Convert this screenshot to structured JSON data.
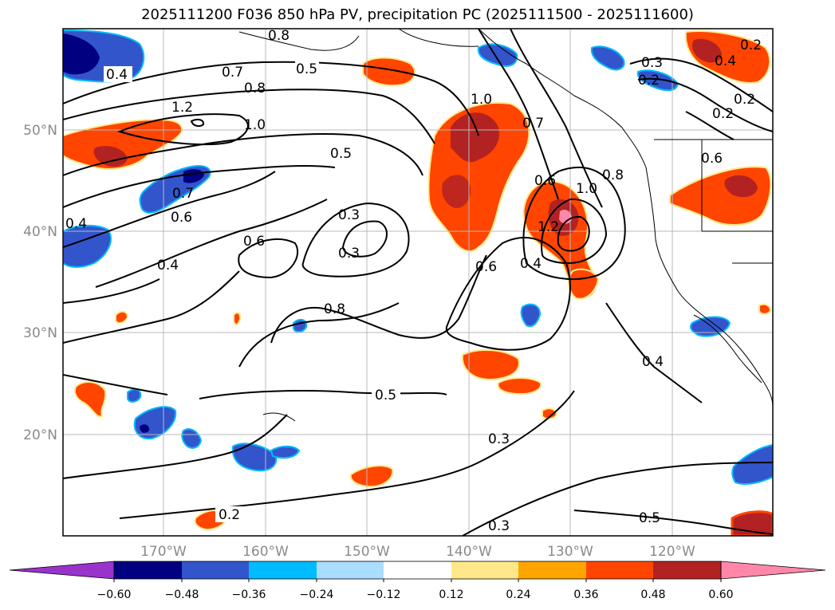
{
  "title": "2025111200 F036 850 hPa PV, precipitation PC (2025111500 - 2025111600)",
  "map": {
    "lat_ticks": [
      "50°N",
      "40°N",
      "30°N",
      "20°N"
    ],
    "lon_ticks": [
      "170°W",
      "160°W",
      "150°W",
      "140°W",
      "130°W",
      "120°W"
    ],
    "contour_labels": [
      "0.4",
      "0.5",
      "0.8",
      "1.2",
      "1.0",
      "0.5",
      "0.4",
      "0.6",
      "0.7",
      "0.4",
      "0.3",
      "0.3",
      "0.6",
      "0.8",
      "1.0",
      "0.7",
      "0.6",
      "1.2",
      "1.0",
      "0.8",
      "0.6",
      "0.4",
      "0.6",
      "0.4",
      "0.5",
      "0.3",
      "0.2",
      "0.3",
      "0.5",
      "0.3",
      "0.2",
      "0.4",
      "0.2",
      "0.2",
      "0.2",
      "0.8",
      "0.7"
    ]
  },
  "colorbar": {
    "colors": [
      "#9933cc",
      "#000080",
      "#3355cc",
      "#00bbff",
      "#aaddff",
      "#ffffff",
      "#ffe88a",
      "#ffa500",
      "#ff4500",
      "#b22222",
      "#ff88aa"
    ],
    "labels": [
      "−0.60",
      "−0.48",
      "−0.36",
      "−0.24",
      "−0.12",
      "0.12",
      "0.24",
      "0.36",
      "0.48",
      "0.60"
    ]
  }
}
